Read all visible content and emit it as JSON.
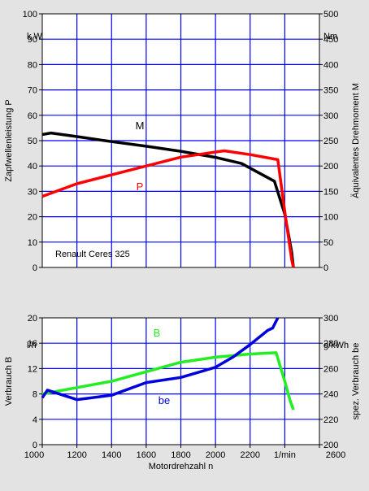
{
  "chart_data": [
    {
      "type": "line",
      "xlim": [
        1000,
        2600
      ],
      "x_ticks": [],
      "ylim": [
        0,
        100
      ],
      "y_ticks": [
        0,
        10,
        20,
        30,
        40,
        50,
        60,
        70,
        80,
        90,
        100
      ],
      "y_unit_label": "k W",
      "ylabel": "Zapfwellenleistung P",
      "y2lim": [
        0,
        500
      ],
      "y2_ticks": [
        0,
        50,
        100,
        150,
        200,
        250,
        300,
        350,
        400,
        450,
        500
      ],
      "y2_unit_label": "Nm",
      "y2label": "Äquivalentes Drehmoment M",
      "grid": true,
      "annotation": "Renault Ceres 325",
      "series": [
        {
          "name": "M",
          "axis": "y2",
          "color": "#000000",
          "points": [
            [
              1000,
              262
            ],
            [
              1050,
              265
            ],
            [
              1200,
              258
            ],
            [
              1400,
              248
            ],
            [
              1600,
              239
            ],
            [
              1800,
              229
            ],
            [
              2000,
              217
            ],
            [
              2150,
              205
            ],
            [
              2340,
              170
            ],
            [
              2400,
              105
            ],
            [
              2440,
              30
            ],
            [
              2450,
              0
            ]
          ]
        },
        {
          "name": "P",
          "axis": "y",
          "color": "#ff0000",
          "points": [
            [
              1000,
              28
            ],
            [
              1200,
              33
            ],
            [
              1400,
              36.5
            ],
            [
              1600,
              40
            ],
            [
              1800,
              43.5
            ],
            [
              2000,
              45.5
            ],
            [
              2050,
              46
            ],
            [
              2200,
              44.5
            ],
            [
              2360,
              42.5
            ],
            [
              2400,
              22
            ],
            [
              2440,
              3
            ],
            [
              2450,
              0
            ]
          ]
        }
      ]
    },
    {
      "type": "line",
      "xlim": [
        1000,
        2600
      ],
      "x_ticks": [
        1000,
        1200,
        1400,
        1600,
        1800,
        2000,
        2200,
        2400,
        2600
      ],
      "x_unit_label": "1/min",
      "xlabel": "Motordrehzahl n",
      "ylim": [
        0,
        20
      ],
      "y_ticks": [
        0,
        4,
        8,
        12,
        16,
        20
      ],
      "y_unit_label": "l/h",
      "ylabel": "Verbrauch B",
      "y2lim": [
        200,
        300
      ],
      "y2_ticks": [
        200,
        220,
        240,
        260,
        280,
        300
      ],
      "y2_unit_label": "g/kWh",
      "y2label": "spez. Verbrauch be",
      "grid": true,
      "series": [
        {
          "name": "B",
          "axis": "y",
          "color": "#22ee22",
          "points": [
            [
              1000,
              8
            ],
            [
              1200,
              9
            ],
            [
              1400,
              10
            ],
            [
              1600,
              11.5
            ],
            [
              1800,
              13
            ],
            [
              2000,
              13.8
            ],
            [
              2200,
              14.3
            ],
            [
              2350,
              14.5
            ],
            [
              2400,
              10
            ],
            [
              2430,
              7
            ],
            [
              2450,
              5.5
            ]
          ]
        },
        {
          "name": "be",
          "axis": "y2",
          "color": "#0000dd",
          "points": [
            [
              1000,
              237
            ],
            [
              1030,
              243
            ],
            [
              1200,
              235.5
            ],
            [
              1400,
              239
            ],
            [
              1600,
              249
            ],
            [
              1800,
              253
            ],
            [
              2000,
              261
            ],
            [
              2100,
              269
            ],
            [
              2200,
              279
            ],
            [
              2300,
              290
            ],
            [
              2330,
              292
            ],
            [
              2360,
              300
            ]
          ]
        }
      ]
    }
  ]
}
